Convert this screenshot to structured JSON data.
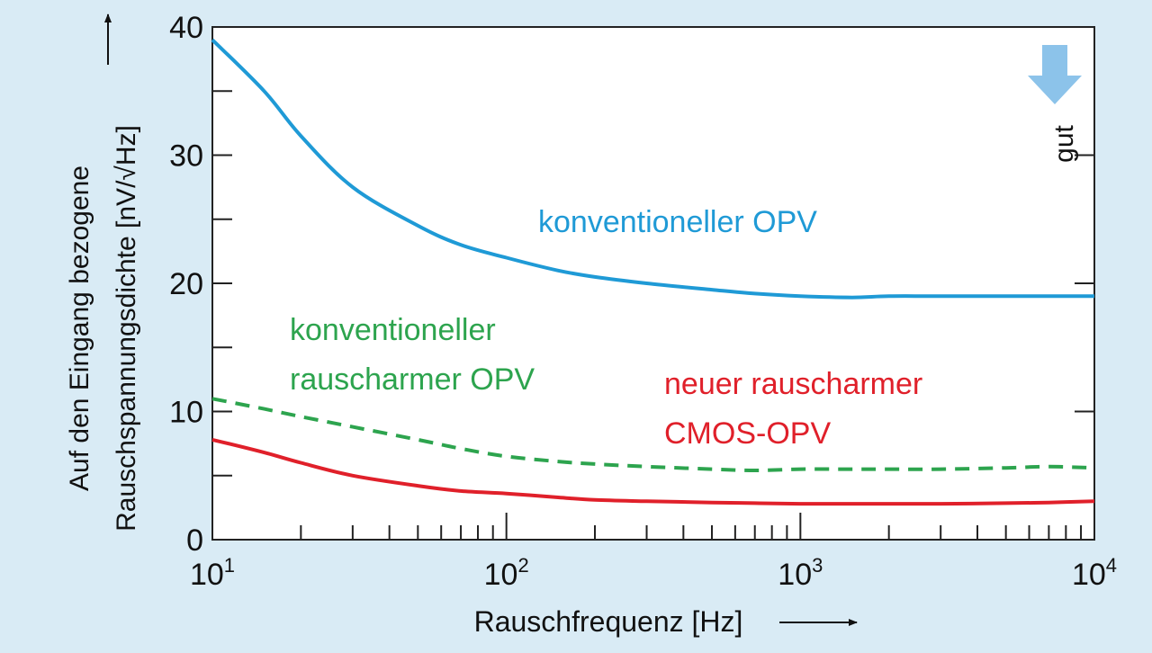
{
  "chart_data": {
    "type": "line",
    "xlabel": "Rauschfrequenz [Hz]",
    "ylabel_line1": "Auf den Eingang bezogene",
    "ylabel_line2": "Rauschspannungsdichte [nV/√Hz]",
    "x_scale": "log",
    "xlim": [
      10,
      10000
    ],
    "ylim": [
      0,
      40
    ],
    "x_tick_labels": [
      {
        "base": "10",
        "exp": "1",
        "value": 10
      },
      {
        "base": "10",
        "exp": "2",
        "value": 100
      },
      {
        "base": "10",
        "exp": "3",
        "value": 1000
      },
      {
        "base": "10",
        "exp": "4",
        "value": 10000
      }
    ],
    "y_ticks": [
      0,
      10,
      20,
      30,
      40
    ],
    "y_tick_labels": [
      "0",
      "10",
      "20",
      "30",
      "40"
    ],
    "grid": false,
    "annotation_gut": "gut",
    "series": [
      {
        "name": "konventioneller OPV",
        "label_lines": [
          "konventioneller OPV"
        ],
        "color": "#1f9ad6",
        "dash": "solid",
        "x": [
          10,
          15,
          20,
          30,
          50,
          70,
          100,
          150,
          200,
          300,
          500,
          700,
          1000,
          1500,
          2000,
          3000,
          5000,
          7000,
          10000
        ],
        "y": [
          39,
          35,
          31.5,
          27.5,
          24.5,
          23,
          22,
          21,
          20.5,
          20,
          19.5,
          19.2,
          19,
          18.9,
          19,
          19,
          19,
          19,
          19
        ]
      },
      {
        "name": "konventioneller rauscharmer OPV",
        "label_lines": [
          "konventioneller",
          "rauscharmer OPV"
        ],
        "color": "#2da44e",
        "dash": "dashed",
        "x": [
          10,
          15,
          20,
          30,
          50,
          70,
          100,
          150,
          200,
          300,
          500,
          700,
          1000,
          1500,
          2000,
          3000,
          5000,
          7000,
          10000
        ],
        "y": [
          11,
          10.2,
          9.6,
          8.8,
          7.8,
          7.1,
          6.5,
          6.1,
          5.9,
          5.7,
          5.5,
          5.4,
          5.5,
          5.5,
          5.5,
          5.5,
          5.6,
          5.7,
          5.6
        ]
      },
      {
        "name": "neuer rauscharmer CMOS-OPV",
        "label_lines": [
          "neuer rauscharmer",
          "CMOS-OPV"
        ],
        "color": "#e0202a",
        "dash": "solid",
        "x": [
          10,
          15,
          20,
          30,
          50,
          70,
          100,
          150,
          200,
          300,
          500,
          700,
          1000,
          1500,
          2000,
          3000,
          5000,
          7000,
          10000
        ],
        "y": [
          7.8,
          6.8,
          6,
          5,
          4.2,
          3.8,
          3.6,
          3.3,
          3.1,
          3,
          2.9,
          2.85,
          2.8,
          2.8,
          2.8,
          2.8,
          2.85,
          2.9,
          3
        ]
      }
    ]
  }
}
